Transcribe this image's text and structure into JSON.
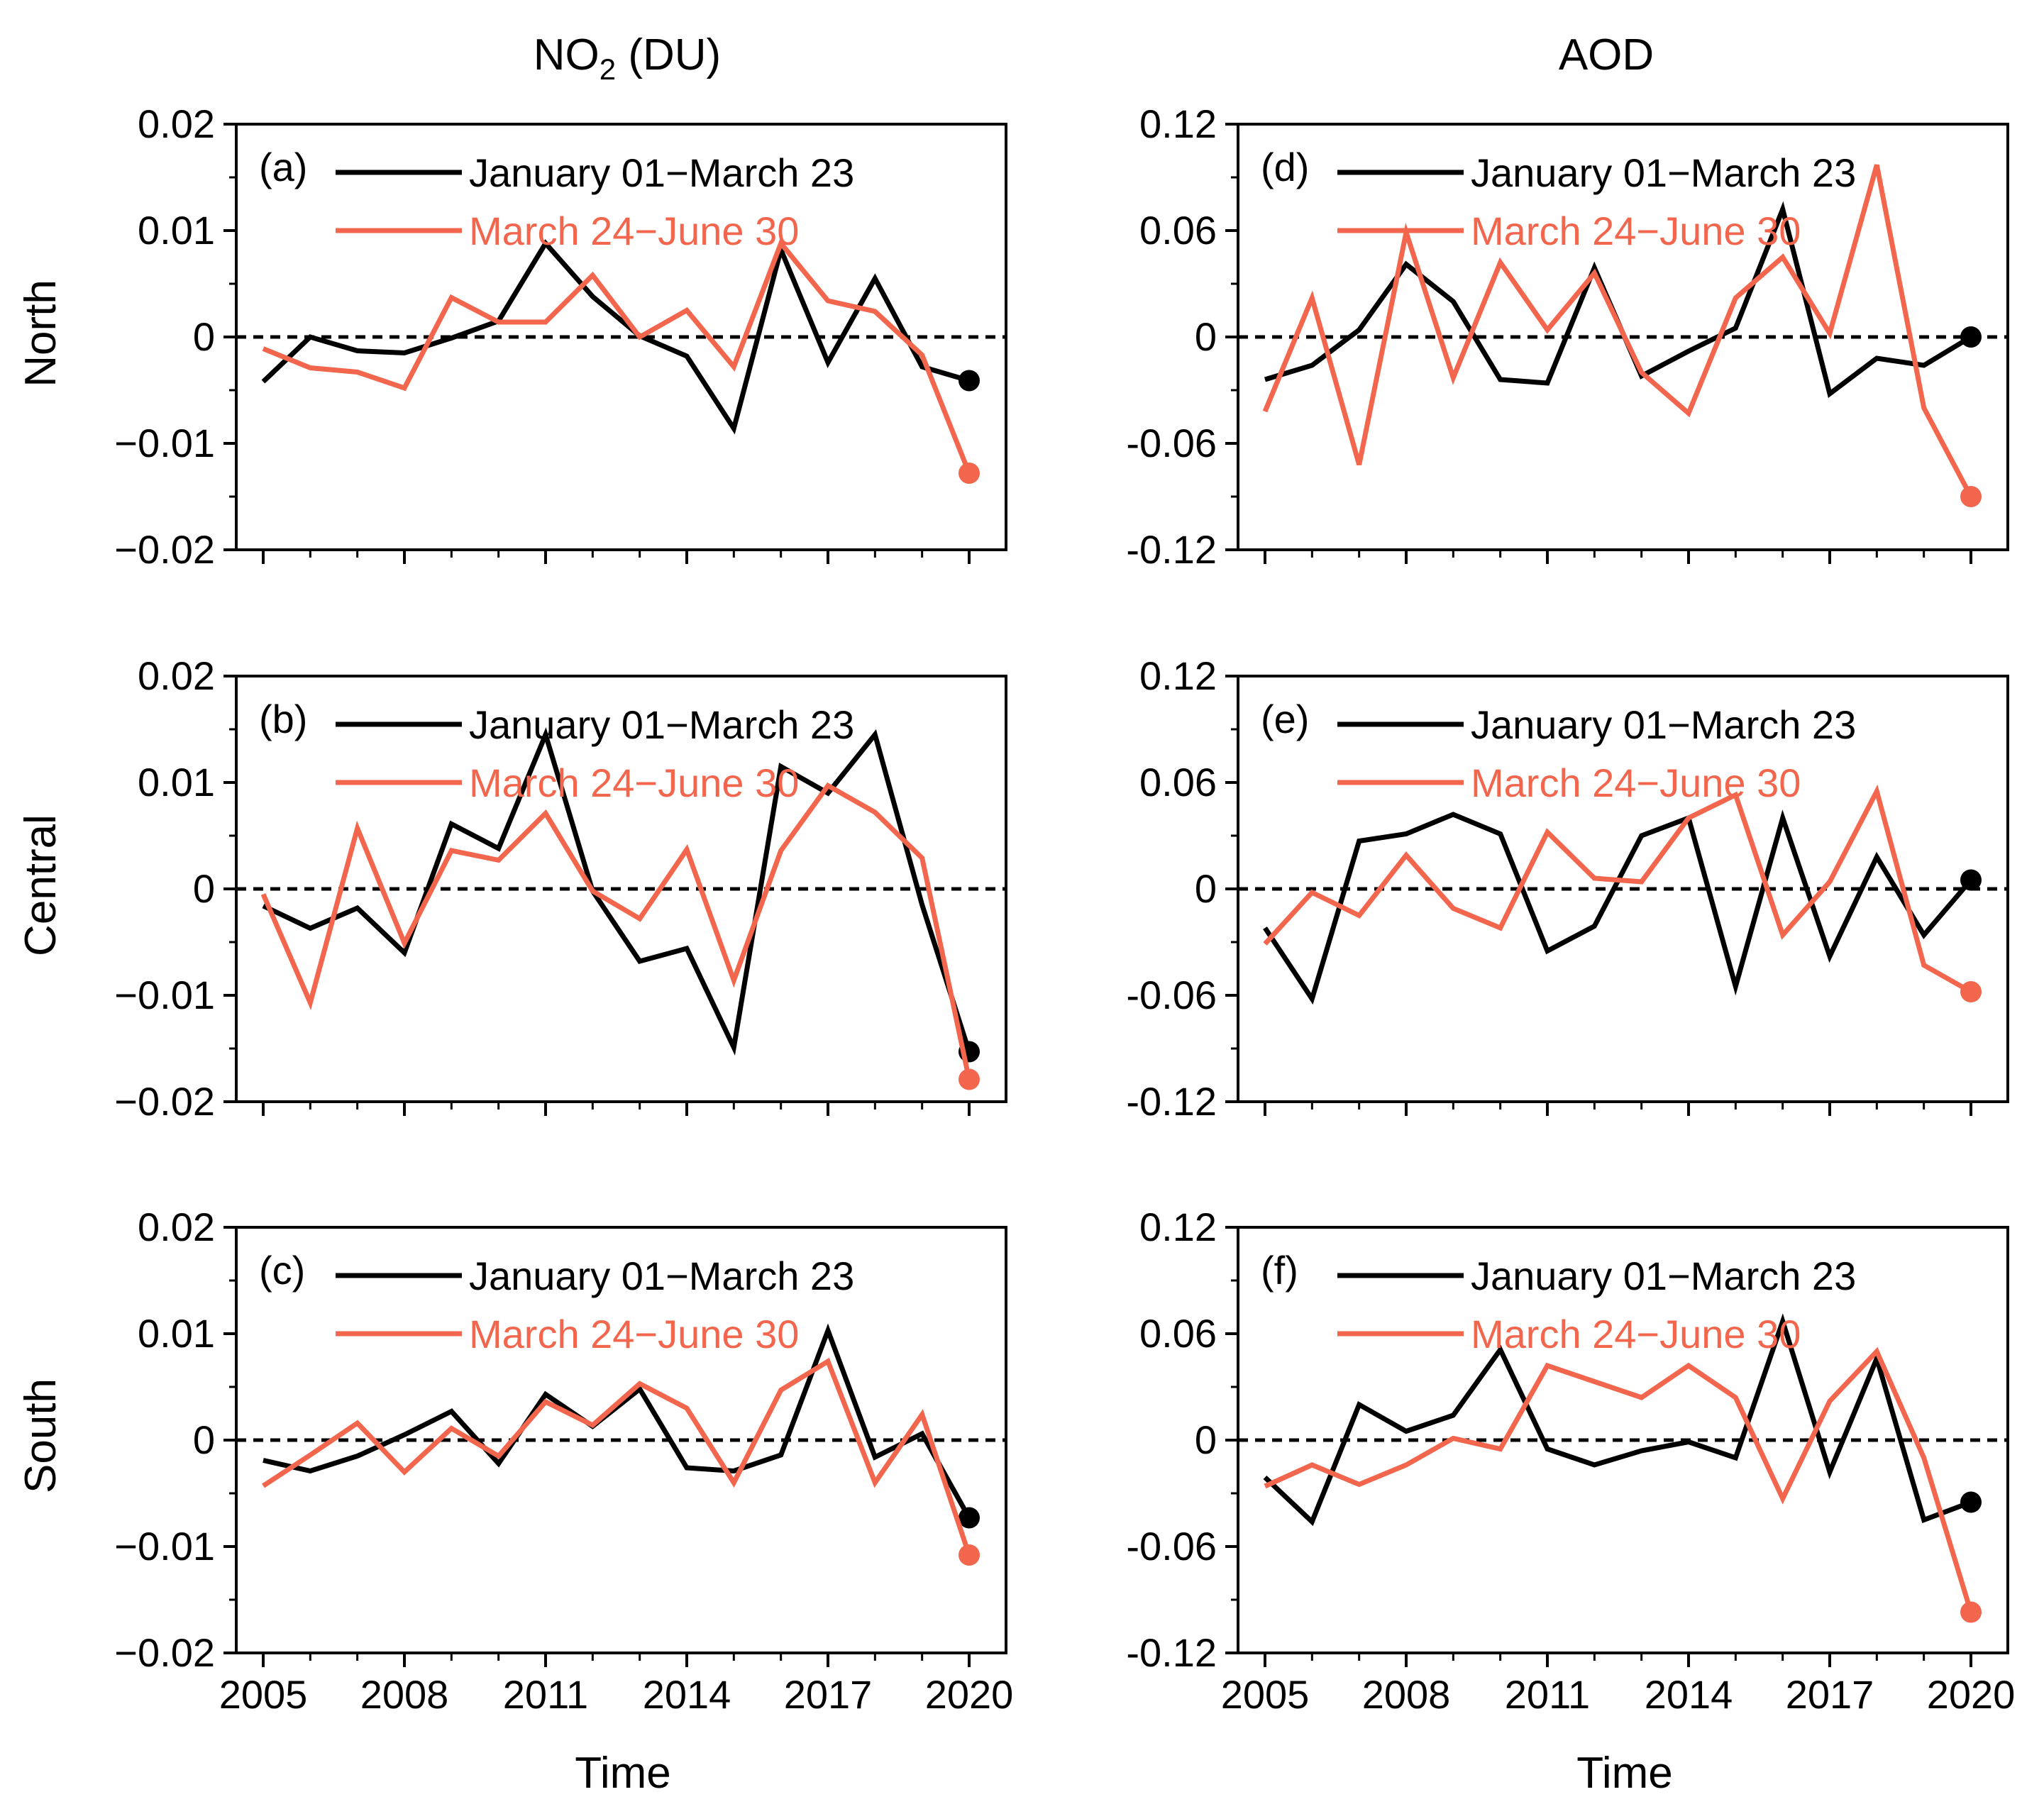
{
  "figure": {
    "column_titles": [
      "NO2 (DU)",
      "AOD"
    ],
    "row_labels": [
      "North",
      "Central",
      "South"
    ],
    "x_axis_title": "Time"
  },
  "colors": {
    "series1": "#000000",
    "series2": "#f2664d",
    "zero_line": "#000000"
  },
  "chart_data": [
    {
      "type": "line",
      "panel_label": "(a)",
      "column": "NO2 (DU)",
      "row": "North",
      "x": [
        2005,
        2006,
        2007,
        2008,
        2009,
        2010,
        2011,
        2012,
        2013,
        2014,
        2015,
        2016,
        2017,
        2018,
        2019,
        2020
      ],
      "xticks": [
        2005,
        2008,
        2011,
        2014,
        2017,
        2020
      ],
      "ylim": [
        -0.02,
        0.02
      ],
      "yticks": [
        -0.02,
        -0.01,
        0,
        0.01,
        0.02
      ],
      "ytick_labels": [
        "−0.02",
        "−0.01",
        "0",
        "0.01",
        "0.02"
      ],
      "series": [
        {
          "name": "January 01−March 23",
          "color": "#000000",
          "values": [
            -0.0042,
            0.0,
            -0.0013,
            -0.0015,
            -0.0001,
            0.0015,
            0.0088,
            0.0038,
            0.0001,
            -0.0018,
            -0.0086,
            0.0082,
            -0.0024,
            0.0055,
            -0.0028,
            -0.0041
          ]
        },
        {
          "name": "March 24−June 30",
          "color": "#f2664d",
          "values": [
            -0.0011,
            -0.0029,
            -0.0033,
            -0.0048,
            0.0037,
            0.0014,
            0.0014,
            0.0058,
            0.0,
            0.0025,
            -0.0028,
            0.0088,
            0.0034,
            0.0024,
            -0.0017,
            -0.0128
          ]
        }
      ]
    },
    {
      "type": "line",
      "panel_label": "(b)",
      "column": "NO2 (DU)",
      "row": "Central",
      "x": [
        2005,
        2006,
        2007,
        2008,
        2009,
        2010,
        2011,
        2012,
        2013,
        2014,
        2015,
        2016,
        2017,
        2018,
        2019,
        2020
      ],
      "xticks": [
        2005,
        2008,
        2011,
        2014,
        2017,
        2020
      ],
      "ylim": [
        -0.02,
        0.02
      ],
      "yticks": [
        -0.02,
        -0.01,
        0,
        0.01,
        0.02
      ],
      "ytick_labels": [
        "−0.02",
        "−0.01",
        "0",
        "0.01",
        "0.02"
      ],
      "series": [
        {
          "name": "January 01−March 23",
          "color": "#000000",
          "values": [
            -0.0016,
            -0.0037,
            -0.0018,
            -0.006,
            0.0061,
            0.0038,
            0.0145,
            -0.0002,
            -0.0068,
            -0.0056,
            -0.0149,
            0.0115,
            0.009,
            0.0145,
            -0.0015,
            -0.0153
          ]
        },
        {
          "name": "March 24−June 30",
          "color": "#f2664d",
          "values": [
            -0.0005,
            -0.0107,
            0.0057,
            -0.0051,
            0.0036,
            0.0027,
            0.0071,
            -0.0002,
            -0.0028,
            0.0037,
            -0.0086,
            0.0036,
            0.0097,
            0.0072,
            0.0029,
            -0.0179
          ]
        }
      ]
    },
    {
      "type": "line",
      "panel_label": "(c)",
      "column": "NO2 (DU)",
      "row": "South",
      "x": [
        2005,
        2006,
        2007,
        2008,
        2009,
        2010,
        2011,
        2012,
        2013,
        2014,
        2015,
        2016,
        2017,
        2018,
        2019,
        2020
      ],
      "xticks": [
        2005,
        2008,
        2011,
        2014,
        2017,
        2020
      ],
      "ylim": [
        -0.02,
        0.02
      ],
      "yticks": [
        -0.02,
        -0.01,
        0,
        0.01,
        0.02
      ],
      "ytick_labels": [
        "−0.02",
        "−0.01",
        "0",
        "0.01",
        "0.02"
      ],
      "series": [
        {
          "name": "January 01−March 23",
          "color": "#000000",
          "values": [
            -0.0019,
            -0.0029,
            -0.0015,
            0.0005,
            0.0027,
            -0.0022,
            0.0043,
            0.0013,
            0.0048,
            -0.0026,
            -0.0029,
            -0.0014,
            0.0103,
            -0.0016,
            0.0006,
            -0.0073
          ]
        },
        {
          "name": "March 24−June 30",
          "color": "#f2664d",
          "values": [
            -0.0043,
            -0.0014,
            0.0016,
            -0.003,
            0.0011,
            -0.0015,
            0.0036,
            0.0014,
            0.0053,
            0.003,
            -0.004,
            0.0047,
            0.0074,
            -0.004,
            0.0024,
            -0.0108
          ]
        }
      ]
    },
    {
      "type": "line",
      "panel_label": "(d)",
      "column": "AOD",
      "row": "North",
      "x": [
        2005,
        2006,
        2007,
        2008,
        2009,
        2010,
        2011,
        2012,
        2013,
        2014,
        2015,
        2016,
        2017,
        2018,
        2019,
        2020
      ],
      "xticks": [
        2005,
        2008,
        2011,
        2014,
        2017,
        2020
      ],
      "ylim": [
        -0.12,
        0.12
      ],
      "yticks": [
        -0.12,
        -0.06,
        0,
        0.06,
        0.12
      ],
      "ytick_labels": [
        "-0.12",
        "-0.06",
        "0",
        "0.06",
        "0.12"
      ],
      "series": [
        {
          "name": "January 01−March 23",
          "color": "#000000",
          "values": [
            -0.024,
            -0.016,
            0.004,
            0.041,
            0.02,
            -0.024,
            -0.026,
            0.039,
            -0.022,
            -0.008,
            0.005,
            0.072,
            -0.032,
            -0.012,
            -0.016,
            0.0
          ]
        },
        {
          "name": "March 24−June 30",
          "color": "#f2664d",
          "values": [
            -0.042,
            0.022,
            -0.072,
            0.059,
            -0.023,
            0.042,
            0.004,
            0.036,
            -0.02,
            -0.043,
            0.022,
            0.045,
            0.002,
            0.097,
            -0.04,
            -0.09
          ]
        }
      ]
    },
    {
      "type": "line",
      "panel_label": "(e)",
      "column": "AOD",
      "row": "Central",
      "x": [
        2005,
        2006,
        2007,
        2008,
        2009,
        2010,
        2011,
        2012,
        2013,
        2014,
        2015,
        2016,
        2017,
        2018,
        2019,
        2020
      ],
      "xticks": [
        2005,
        2008,
        2011,
        2014,
        2017,
        2020
      ],
      "ylim": [
        -0.12,
        0.12
      ],
      "yticks": [
        -0.12,
        -0.06,
        0,
        0.06,
        0.12
      ],
      "ytick_labels": [
        "-0.12",
        "-0.06",
        "0",
        "0.06",
        "0.12"
      ],
      "series": [
        {
          "name": "January 01−March 23",
          "color": "#000000",
          "values": [
            -0.022,
            -0.062,
            0.027,
            0.031,
            0.042,
            0.031,
            -0.035,
            -0.021,
            0.03,
            0.04,
            -0.055,
            0.04,
            -0.038,
            0.018,
            -0.026,
            0.005
          ]
        },
        {
          "name": "March 24−June 30",
          "color": "#f2664d",
          "values": [
            -0.031,
            -0.002,
            -0.015,
            0.019,
            -0.011,
            -0.022,
            0.032,
            0.006,
            0.004,
            0.04,
            0.053,
            -0.026,
            0.004,
            0.055,
            -0.043,
            -0.058
          ]
        }
      ]
    },
    {
      "type": "line",
      "panel_label": "(f)",
      "column": "AOD",
      "row": "South",
      "x": [
        2005,
        2006,
        2007,
        2008,
        2009,
        2010,
        2011,
        2012,
        2013,
        2014,
        2015,
        2016,
        2017,
        2018,
        2019,
        2020
      ],
      "xticks": [
        2005,
        2008,
        2011,
        2014,
        2017,
        2020
      ],
      "ylim": [
        -0.12,
        0.12
      ],
      "yticks": [
        -0.12,
        -0.06,
        0,
        0.06,
        0.12
      ],
      "ytick_labels": [
        "-0.12",
        "-0.06",
        "0",
        "0.06",
        "0.12"
      ],
      "series": [
        {
          "name": "January 01−March 23",
          "color": "#000000",
          "values": [
            -0.021,
            -0.046,
            0.02,
            0.005,
            0.014,
            0.051,
            -0.005,
            -0.014,
            -0.006,
            -0.001,
            -0.01,
            0.067,
            -0.018,
            0.046,
            -0.045,
            -0.035
          ]
        },
        {
          "name": "March 24−June 30",
          "color": "#f2664d",
          "values": [
            -0.026,
            -0.014,
            -0.025,
            -0.014,
            0.001,
            -0.005,
            0.042,
            0.033,
            0.024,
            0.042,
            0.024,
            -0.033,
            0.022,
            0.05,
            -0.01,
            -0.097
          ]
        }
      ]
    }
  ]
}
